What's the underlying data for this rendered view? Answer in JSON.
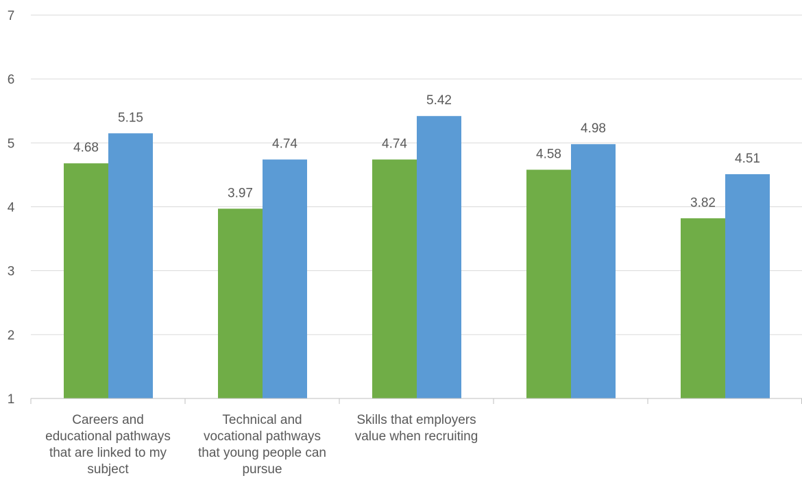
{
  "chart_data": {
    "type": "bar",
    "title": "",
    "xlabel": "",
    "ylabel": "",
    "ylim": [
      1,
      7
    ],
    "yticks": [
      1,
      2,
      3,
      4,
      5,
      6,
      7
    ],
    "grid": true,
    "legend": "none",
    "categories": [
      "Careers and educational pathways that are linked to my subject",
      "Technical and vocational pathways that young people can pursue",
      "Skills that employers value when recruiting",
      "",
      ""
    ],
    "category_lines": [
      [
        "Careers and",
        "educational pathways",
        "that are linked to my",
        "subject"
      ],
      [
        "Technical and",
        "vocational pathways",
        "that young people can",
        "pursue"
      ],
      [
        "Skills that employers",
        "value when recruiting"
      ],
      [],
      []
    ],
    "series": [
      {
        "color": "#70ad47",
        "values": [
          4.68,
          3.97,
          4.74,
          4.58,
          3.82
        ]
      },
      {
        "color": "#5b9bd5",
        "values": [
          5.15,
          4.74,
          5.42,
          4.98,
          4.51
        ]
      }
    ],
    "data_label_decimals": 2
  }
}
